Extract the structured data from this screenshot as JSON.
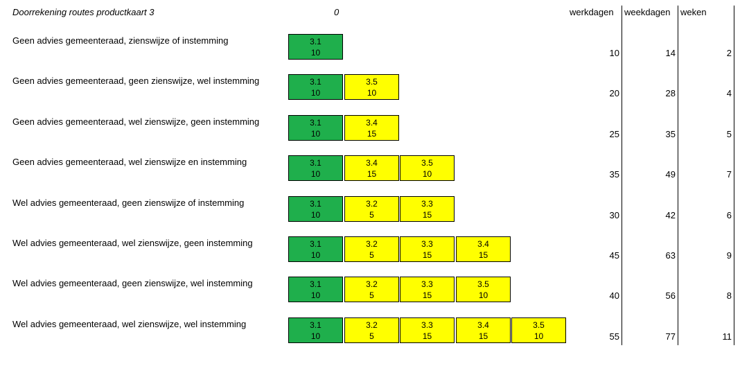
{
  "sheet": {
    "title": "Doorrekening routes productkaart 3",
    "zero_label": "0",
    "headers": {
      "werkdagen": "werkdagen",
      "weekdagen": "weekdagen",
      "weken": "weken"
    },
    "colors": {
      "green": "#1faf4c",
      "yellow": "#ffff00"
    },
    "rows": [
      {
        "label": "Geen advies gemeenteraad, zienswijze of instemming",
        "steps": [
          {
            "code": "3.1",
            "days": "10",
            "color": "green"
          }
        ],
        "werkdagen": "10",
        "weekdagen": "14",
        "weken": "2"
      },
      {
        "label": "Geen advies gemeenteraad, geen zienswijze, wel instemming",
        "steps": [
          {
            "code": "3.1",
            "days": "10",
            "color": "green"
          },
          {
            "code": "3.5",
            "days": "10",
            "color": "yellow"
          }
        ],
        "werkdagen": "20",
        "weekdagen": "28",
        "weken": "4"
      },
      {
        "label": "Geen advies gemeenteraad, wel zienswijze, geen instemming",
        "steps": [
          {
            "code": "3.1",
            "days": "10",
            "color": "green"
          },
          {
            "code": "3.4",
            "days": "15",
            "color": "yellow"
          }
        ],
        "werkdagen": "25",
        "weekdagen": "35",
        "weken": "5"
      },
      {
        "label": "Geen advies gemeenteraad, wel zienswijze en instemming",
        "steps": [
          {
            "code": "3.1",
            "days": "10",
            "color": "green"
          },
          {
            "code": "3.4",
            "days": "15",
            "color": "yellow"
          },
          {
            "code": "3.5",
            "days": "10",
            "color": "yellow"
          }
        ],
        "werkdagen": "35",
        "weekdagen": "49",
        "weken": "7"
      },
      {
        "label": "Wel advies gemeenteraad, geen zienswijze of instemming",
        "steps": [
          {
            "code": "3.1",
            "days": "10",
            "color": "green"
          },
          {
            "code": "3.2",
            "days": "5",
            "color": "yellow"
          },
          {
            "code": "3.3",
            "days": "15",
            "color": "yellow"
          }
        ],
        "werkdagen": "30",
        "weekdagen": "42",
        "weken": "6"
      },
      {
        "label": "Wel advies gemeenteraad, wel zienswijze, geen instemming",
        "steps": [
          {
            "code": "3.1",
            "days": "10",
            "color": "green"
          },
          {
            "code": "3.2",
            "days": "5",
            "color": "yellow"
          },
          {
            "code": "3.3",
            "days": "15",
            "color": "yellow"
          },
          {
            "code": "3.4",
            "days": "15",
            "color": "yellow"
          }
        ],
        "werkdagen": "45",
        "weekdagen": "63",
        "weken": "9"
      },
      {
        "label": "Wel advies gemeenteraad, geen zienswijze, wel instemming",
        "steps": [
          {
            "code": "3.1",
            "days": "10",
            "color": "green"
          },
          {
            "code": "3.2",
            "days": "5",
            "color": "yellow"
          },
          {
            "code": "3.3",
            "days": "15",
            "color": "yellow"
          },
          {
            "code": "3.5",
            "days": "10",
            "color": "yellow"
          }
        ],
        "werkdagen": "40",
        "weekdagen": "56",
        "weken": "8"
      },
      {
        "label": "Wel advies gemeenteraad, wel zienswijze, wel instemming",
        "steps": [
          {
            "code": "3.1",
            "days": "10",
            "color": "green"
          },
          {
            "code": "3.2",
            "days": "5",
            "color": "yellow"
          },
          {
            "code": "3.3",
            "days": "15",
            "color": "yellow"
          },
          {
            "code": "3.4",
            "days": "15",
            "color": "yellow"
          },
          {
            "code": "3.5",
            "days": "10",
            "color": "yellow"
          }
        ],
        "werkdagen": "55",
        "weekdagen": "77",
        "weken": "11"
      }
    ]
  }
}
